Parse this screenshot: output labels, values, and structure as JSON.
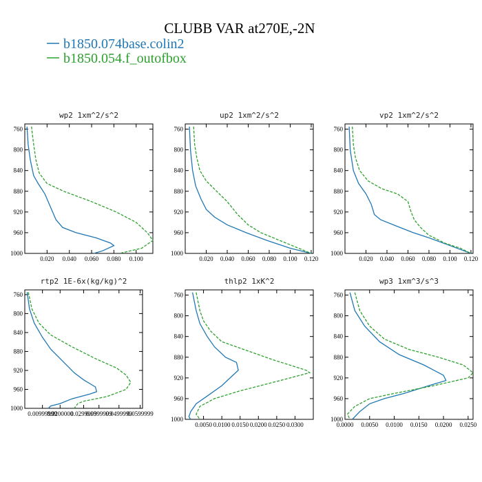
{
  "header": {
    "title": "CLUBB VAR at270E,-2N"
  },
  "legend": [
    {
      "label": "b1850.074base.colin2",
      "color": "#1f77b4",
      "dash": "solid"
    },
    {
      "label": "b1850.054.f_outofbox",
      "color": "#2ca02c",
      "dash": "dashed"
    }
  ],
  "chart_data": [
    {
      "type": "line",
      "title": "wp2  1xm^2/s^2",
      "xlim": [
        0,
        0.115
      ],
      "ylim": [
        1000,
        750
      ],
      "xticks": [
        0.02,
        0.04,
        0.06,
        0.08,
        0.1
      ],
      "xtick_labels": [
        "0.020",
        "0.040",
        "0.060",
        "0.080",
        "0.100"
      ],
      "yticks": [
        760,
        800,
        840,
        880,
        920,
        960,
        1000
      ],
      "series": [
        {
          "name": "b1850.074base.colin2",
          "points": [
            [
              0.002,
              755
            ],
            [
              0.003,
              790
            ],
            [
              0.005,
              820
            ],
            [
              0.008,
              850
            ],
            [
              0.012,
              865
            ],
            [
              0.018,
              885
            ],
            [
              0.022,
              905
            ],
            [
              0.028,
              935
            ],
            [
              0.034,
              950
            ],
            [
              0.046,
              960
            ],
            [
              0.064,
              970
            ],
            [
              0.077,
              980
            ],
            [
              0.08,
              985
            ],
            [
              0.07,
              995
            ],
            [
              0.062,
              1000
            ]
          ]
        },
        {
          "name": "b1850.054.f_outofbox",
          "points": [
            [
              0.006,
              755
            ],
            [
              0.008,
              790
            ],
            [
              0.01,
              820
            ],
            [
              0.013,
              845
            ],
            [
              0.02,
              865
            ],
            [
              0.035,
              880
            ],
            [
              0.06,
              900
            ],
            [
              0.082,
              920
            ],
            [
              0.1,
              940
            ],
            [
              0.11,
              960
            ],
            [
              0.115,
              975
            ],
            [
              0.105,
              990
            ],
            [
              0.085,
              1000
            ]
          ]
        }
      ]
    },
    {
      "type": "line",
      "title": "up2  1xm^2/s^2",
      "xlim": [
        0,
        0.122
      ],
      "ylim": [
        1000,
        750
      ],
      "xticks": [
        0.02,
        0.04,
        0.06,
        0.08,
        0.1,
        0.12
      ],
      "xtick_labels": [
        "0.020",
        "0.040",
        "0.060",
        "0.080",
        "0.100",
        "0.120"
      ],
      "yticks": [
        760,
        800,
        840,
        880,
        920,
        960,
        1000
      ],
      "series": [
        {
          "name": "b1850.074base.colin2",
          "points": [
            [
              0.004,
              755
            ],
            [
              0.005,
              800
            ],
            [
              0.007,
              840
            ],
            [
              0.01,
              870
            ],
            [
              0.015,
              895
            ],
            [
              0.02,
              915
            ],
            [
              0.028,
              930
            ],
            [
              0.04,
              945
            ],
            [
              0.058,
              960
            ],
            [
              0.078,
              975
            ],
            [
              0.1,
              990
            ],
            [
              0.12,
              1000
            ]
          ]
        },
        {
          "name": "b1850.054.f_outofbox",
          "points": [
            [
              0.008,
              755
            ],
            [
              0.009,
              790
            ],
            [
              0.011,
              815
            ],
            [
              0.014,
              840
            ],
            [
              0.02,
              860
            ],
            [
              0.03,
              880
            ],
            [
              0.04,
              900
            ],
            [
              0.05,
              925
            ],
            [
              0.06,
              945
            ],
            [
              0.072,
              960
            ],
            [
              0.09,
              975
            ],
            [
              0.108,
              990
            ],
            [
              0.12,
              1000
            ]
          ]
        }
      ]
    },
    {
      "type": "line",
      "title": "vp2  1xm^2/s^2",
      "xlim": [
        0,
        0.122
      ],
      "ylim": [
        1000,
        750
      ],
      "xticks": [
        0.02,
        0.04,
        0.06,
        0.08,
        0.1,
        0.12
      ],
      "xtick_labels": [
        "0.020",
        "0.040",
        "0.060",
        "0.080",
        "0.100",
        "0.120"
      ],
      "yticks": [
        760,
        800,
        840,
        880,
        920,
        960,
        1000
      ],
      "series": [
        {
          "name": "b1850.074base.colin2",
          "points": [
            [
              0.004,
              755
            ],
            [
              0.005,
              800
            ],
            [
              0.008,
              840
            ],
            [
              0.013,
              865
            ],
            [
              0.02,
              885
            ],
            [
              0.025,
              905
            ],
            [
              0.028,
              925
            ],
            [
              0.034,
              935
            ],
            [
              0.05,
              948
            ],
            [
              0.065,
              960
            ],
            [
              0.08,
              970
            ],
            [
              0.1,
              985
            ],
            [
              0.12,
              1000
            ]
          ]
        },
        {
          "name": "b1850.054.f_outofbox",
          "points": [
            [
              0.007,
              755
            ],
            [
              0.008,
              790
            ],
            [
              0.01,
              815
            ],
            [
              0.014,
              840
            ],
            [
              0.022,
              860
            ],
            [
              0.035,
              875
            ],
            [
              0.05,
              885
            ],
            [
              0.06,
              900
            ],
            [
              0.063,
              920
            ],
            [
              0.066,
              935
            ],
            [
              0.072,
              950
            ],
            [
              0.08,
              965
            ],
            [
              0.095,
              980
            ],
            [
              0.11,
              990
            ],
            [
              0.12,
              1000
            ]
          ]
        }
      ]
    },
    {
      "type": "line",
      "title": "rtp2  1E-6x(kg/kg)^2",
      "xlim": [
        0,
        1
      ],
      "ylim": [
        1000,
        750
      ],
      "xticks": [
        0.15,
        0.3,
        0.5,
        0.63,
        0.8,
        0.98
      ],
      "xtick_labels": [
        "0.00999999",
        "0.0200000",
        "0.0299999",
        "0.0399999",
        "0.0499999",
        "0.0599999"
      ],
      "yticks": [
        760,
        800,
        840,
        880,
        920,
        960,
        1000
      ],
      "series": [
        {
          "name": "b1850.074base.colin2",
          "points": [
            [
              0.02,
              755
            ],
            [
              0.04,
              790
            ],
            [
              0.08,
              820
            ],
            [
              0.15,
              850
            ],
            [
              0.22,
              875
            ],
            [
              0.32,
              900
            ],
            [
              0.42,
              925
            ],
            [
              0.5,
              940
            ],
            [
              0.6,
              955
            ],
            [
              0.61,
              965
            ],
            [
              0.55,
              970
            ],
            [
              0.4,
              980
            ],
            [
              0.3,
              990
            ],
            [
              0.22,
              995
            ],
            [
              0.2,
              1000
            ]
          ]
        },
        {
          "name": "b1850.054.f_outofbox",
          "points": [
            [
              0.03,
              755
            ],
            [
              0.06,
              790
            ],
            [
              0.12,
              820
            ],
            [
              0.22,
              845
            ],
            [
              0.4,
              870
            ],
            [
              0.6,
              895
            ],
            [
              0.78,
              915
            ],
            [
              0.86,
              930
            ],
            [
              0.9,
              945
            ],
            [
              0.86,
              960
            ],
            [
              0.7,
              975
            ],
            [
              0.5,
              985
            ],
            [
              0.45,
              990
            ],
            [
              0.42,
              1000
            ]
          ]
        }
      ]
    },
    {
      "type": "line",
      "title": "thlp2  1xK^2",
      "xlim": [
        0,
        0.035
      ],
      "ylim": [
        1000,
        750
      ],
      "xticks": [
        0.005,
        0.01,
        0.015,
        0.02,
        0.025,
        0.03
      ],
      "xtick_labels": [
        "0.0050",
        "0.0100",
        "0.0150",
        "0.0200",
        "0.0250",
        "0.0300"
      ],
      "yticks": [
        760,
        800,
        840,
        880,
        920,
        960,
        1000
      ],
      "series": [
        {
          "name": "b1850.074base.colin2",
          "points": [
            [
              0.002,
              755
            ],
            [
              0.003,
              790
            ],
            [
              0.004,
              815
            ],
            [
              0.006,
              840
            ],
            [
              0.008,
              860
            ],
            [
              0.011,
              880
            ],
            [
              0.014,
              890
            ],
            [
              0.0145,
              905
            ],
            [
              0.013,
              915
            ],
            [
              0.01,
              935
            ],
            [
              0.006,
              955
            ],
            [
              0.003,
              970
            ],
            [
              0.0015,
              985
            ],
            [
              0.001,
              995
            ],
            [
              0.0015,
              1000
            ]
          ]
        },
        {
          "name": "b1850.054.f_outofbox",
          "points": [
            [
              0.003,
              755
            ],
            [
              0.004,
              790
            ],
            [
              0.005,
              810
            ],
            [
              0.007,
              830
            ],
            [
              0.01,
              850
            ],
            [
              0.016,
              865
            ],
            [
              0.024,
              885
            ],
            [
              0.033,
              905
            ],
            [
              0.034,
              910
            ],
            [
              0.026,
              925
            ],
            [
              0.015,
              945
            ],
            [
              0.008,
              960
            ],
            [
              0.004,
              975
            ],
            [
              0.003,
              990
            ],
            [
              0.004,
              1000
            ]
          ]
        }
      ]
    },
    {
      "type": "line",
      "title": "wp3  1xm^3/s^3",
      "xlim": [
        0,
        0.026
      ],
      "ylim": [
        1000,
        750
      ],
      "xticks": [
        0,
        0.005,
        0.01,
        0.015,
        0.02,
        0.025
      ],
      "xtick_labels": [
        "0.0000",
        "0.0050",
        "0.0100",
        "0.0150",
        "0.0200",
        "0.0250"
      ],
      "yticks": [
        760,
        800,
        840,
        880,
        920,
        960,
        1000
      ],
      "series": [
        {
          "name": "b1850.074base.colin2",
          "points": [
            [
              0.001,
              755
            ],
            [
              0.002,
              790
            ],
            [
              0.004,
              820
            ],
            [
              0.007,
              850
            ],
            [
              0.011,
              875
            ],
            [
              0.016,
              895
            ],
            [
              0.02,
              915
            ],
            [
              0.0205,
              925
            ],
            [
              0.017,
              935
            ],
            [
              0.012,
              950
            ],
            [
              0.008,
              960
            ],
            [
              0.005,
              970
            ],
            [
              0.003,
              985
            ],
            [
              0.0015,
              1000
            ]
          ]
        },
        {
          "name": "b1850.054.f_outofbox",
          "points": [
            [
              0.002,
              755
            ],
            [
              0.003,
              790
            ],
            [
              0.005,
              820
            ],
            [
              0.008,
              845
            ],
            [
              0.013,
              865
            ],
            [
              0.019,
              880
            ],
            [
              0.024,
              895
            ],
            [
              0.026,
              910
            ],
            [
              0.025,
              920
            ],
            [
              0.018,
              935
            ],
            [
              0.01,
              950
            ],
            [
              0.005,
              960
            ],
            [
              0.002,
              975
            ],
            [
              0.0005,
              990
            ],
            [
              0.001,
              1000
            ]
          ]
        }
      ]
    }
  ]
}
